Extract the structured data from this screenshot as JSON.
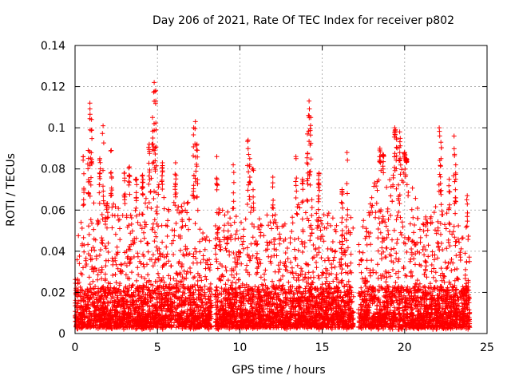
{
  "chart_data": {
    "type": "scatter",
    "title": "Day 206 of 2021, Rate Of TEC Index for receiver p802",
    "xlabel": "GPS time / hours",
    "ylabel": "ROTI / TECUs",
    "xlim": [
      0,
      25
    ],
    "ylim": [
      0,
      0.14
    ],
    "x_ticks": [
      "0",
      "5",
      "10",
      "15",
      "20",
      "25"
    ],
    "y_ticks": [
      "0",
      "0.02",
      "0.04",
      "0.06",
      "0.08",
      "0.1",
      "0.12",
      "0.14"
    ],
    "grid": true,
    "marker": "+",
    "point_color": "#ff0000",
    "envelope": {
      "x": [
        0,
        0.5,
        0.9,
        1.2,
        1.6,
        2.0,
        2.4,
        2.8,
        3.2,
        3.6,
        4.0,
        4.4,
        4.8,
        5.2,
        5.6,
        6.0,
        6.5,
        7.0,
        7.3,
        7.8,
        8.2,
        8.5,
        9.0,
        9.5,
        10.0,
        10.5,
        11.0,
        11.5,
        12.0,
        12.5,
        13.0,
        13.5,
        14.0,
        14.5,
        15.0,
        15.5,
        16.0,
        16.5,
        16.8,
        17.0,
        17.5,
        18.0,
        18.5,
        19.0,
        19.5,
        20.0,
        20.5,
        21.0,
        21.5,
        22.0,
        22.5,
        23.0,
        23.5,
        23.9
      ],
      "values": [
        0.04,
        0.06,
        0.07,
        0.065,
        0.06,
        0.07,
        0.062,
        0.06,
        0.065,
        0.058,
        0.065,
        0.07,
        0.08,
        0.072,
        0.06,
        0.065,
        0.062,
        0.07,
        0.065,
        0.05,
        0.045,
        0.06,
        0.065,
        0.055,
        0.06,
        0.065,
        0.055,
        0.06,
        0.058,
        0.06,
        0.055,
        0.065,
        0.06,
        0.07,
        0.06,
        0.062,
        0.05,
        0.045,
        0.06,
        0.035,
        0.06,
        0.07,
        0.08,
        0.075,
        0.08,
        0.085,
        0.07,
        0.06,
        0.055,
        0.065,
        0.06,
        0.058,
        0.055,
        0.05
      ]
    },
    "spikes": [
      {
        "x": 0.5,
        "y": 0.086
      },
      {
        "x": 0.8,
        "y": 0.089
      },
      {
        "x": 0.9,
        "y": 0.112
      },
      {
        "x": 1.0,
        "y": 0.104
      },
      {
        "x": 1.5,
        "y": 0.085
      },
      {
        "x": 1.7,
        "y": 0.101
      },
      {
        "x": 2.2,
        "y": 0.089
      },
      {
        "x": 3.0,
        "y": 0.078
      },
      {
        "x": 3.3,
        "y": 0.081
      },
      {
        "x": 3.7,
        "y": 0.075
      },
      {
        "x": 4.1,
        "y": 0.077
      },
      {
        "x": 4.5,
        "y": 0.092
      },
      {
        "x": 4.7,
        "y": 0.105
      },
      {
        "x": 4.8,
        "y": 0.122
      },
      {
        "x": 4.9,
        "y": 0.118
      },
      {
        "x": 5.3,
        "y": 0.083
      },
      {
        "x": 6.1,
        "y": 0.083
      },
      {
        "x": 7.2,
        "y": 0.1
      },
      {
        "x": 7.3,
        "y": 0.103
      },
      {
        "x": 7.4,
        "y": 0.092
      },
      {
        "x": 8.6,
        "y": 0.086
      },
      {
        "x": 9.6,
        "y": 0.082
      },
      {
        "x": 10.5,
        "y": 0.094
      },
      {
        "x": 10.6,
        "y": 0.085
      },
      {
        "x": 10.8,
        "y": 0.08
      },
      {
        "x": 12.0,
        "y": 0.076
      },
      {
        "x": 13.4,
        "y": 0.086
      },
      {
        "x": 13.8,
        "y": 0.075
      },
      {
        "x": 14.1,
        "y": 0.097
      },
      {
        "x": 14.2,
        "y": 0.113
      },
      {
        "x": 14.3,
        "y": 0.105
      },
      {
        "x": 14.8,
        "y": 0.078
      },
      {
        "x": 16.2,
        "y": 0.07
      },
      {
        "x": 16.5,
        "y": 0.088
      },
      {
        "x": 18.5,
        "y": 0.09
      },
      {
        "x": 18.7,
        "y": 0.087
      },
      {
        "x": 19.4,
        "y": 0.1
      },
      {
        "x": 19.5,
        "y": 0.095
      },
      {
        "x": 19.7,
        "y": 0.098
      },
      {
        "x": 20.0,
        "y": 0.088
      },
      {
        "x": 20.1,
        "y": 0.085
      },
      {
        "x": 22.1,
        "y": 0.1
      },
      {
        "x": 22.2,
        "y": 0.093
      },
      {
        "x": 22.7,
        "y": 0.075
      },
      {
        "x": 23.0,
        "y": 0.096
      },
      {
        "x": 23.1,
        "y": 0.082
      },
      {
        "x": 23.8,
        "y": 0.067
      }
    ],
    "gaps": [
      [
        8.3,
        8.5
      ],
      [
        16.9,
        17.2
      ]
    ]
  }
}
